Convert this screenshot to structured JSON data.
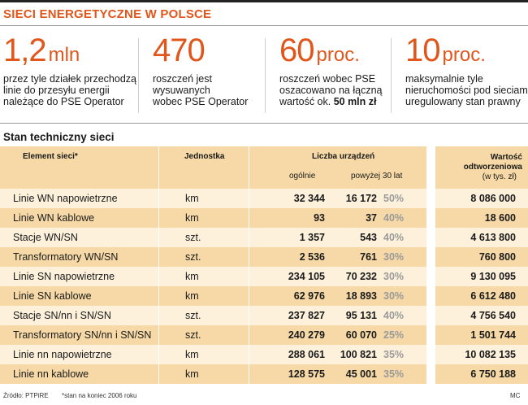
{
  "title": "SIECI ENERGETYCZNE W POLSCE",
  "stats": [
    {
      "value": "1,2",
      "unit": "mln",
      "lines": [
        "przez tyle działek przechodzą",
        "linie do przesyłu energii",
        "należące do PSE Operator"
      ]
    },
    {
      "value": "470",
      "unit": "",
      "lines": [
        "roszczeń jest",
        "wysuwanych",
        "wobec PSE Operator"
      ]
    },
    {
      "value": "60",
      "unit": "proc.",
      "lines": [
        "roszczeń wobec PSE",
        "oszacowano na łączną"
      ],
      "line3_prefix": "wartość ok. ",
      "line3_bold": "50 mln zł"
    },
    {
      "value": "10",
      "unit": "proc.",
      "lines": [
        "maksymalnie tyle",
        "nieruchomości pod sieciami ma",
        "uregulowany stan prawny"
      ]
    }
  ],
  "table": {
    "subtitle": "Stan techniczny sieci",
    "headers": {
      "element": "Element sieci*",
      "unit": "Jednostka",
      "count": "Liczba urządzeń",
      "total": "ogólnie",
      "over30": "powyżej 30 lat",
      "value_l1": "Wartość",
      "value_l2": "odtworzeniowa",
      "value_l3": "(w tys. zł)"
    },
    "rows": [
      {
        "element": "Linie WN napowietrzne",
        "unit": "km",
        "total": "32 344",
        "over30": "16 172",
        "pct": "50%",
        "value": "8 086 000"
      },
      {
        "element": "Linie WN kablowe",
        "unit": "km",
        "total": "93",
        "over30": "37",
        "pct": "40%",
        "value": "18 600"
      },
      {
        "element": "Stacje WN/SN",
        "unit": "szt.",
        "total": "1 357",
        "over30": "543",
        "pct": "40%",
        "value": "4 613 800"
      },
      {
        "element": "Transformatory WN/SN",
        "unit": "szt.",
        "total": "2 536",
        "over30": "761",
        "pct": "30%",
        "value": "760 800"
      },
      {
        "element": "Linie SN napowietrzne",
        "unit": "km",
        "total": "234 105",
        "over30": "70 232",
        "pct": "30%",
        "value": "9 130 095"
      },
      {
        "element": "Linie SN kablowe",
        "unit": "km",
        "total": "62 976",
        "over30": "18 893",
        "pct": "30%",
        "value": "6 612 480"
      },
      {
        "element": "Stacje SN/nn i SN/SN",
        "unit": "szt.",
        "total": "237 827",
        "over30": "95 131",
        "pct": "40%",
        "value": "4 756 540"
      },
      {
        "element": "Transformatory SN/nn i SN/SN",
        "unit": "szt.",
        "total": "240 279",
        "over30": "60 070",
        "pct": "25%",
        "value": "1 501 744"
      },
      {
        "element": "Linie nn napowietrzne",
        "unit": "km",
        "total": "288 061",
        "over30": "100 821",
        "pct": "35%",
        "value": "10 082 135"
      },
      {
        "element": "Linie nn kablowe",
        "unit": "km",
        "total": "128 575",
        "over30": "45 001",
        "pct": "35%",
        "value": "6 750 188"
      }
    ]
  },
  "footer": {
    "source": "Źródło: PTPiRE",
    "note": "*stan na koniec 2006 roku",
    "author": "MC"
  },
  "colors": {
    "accent": "#e0561b",
    "band_dark": "#f6d9a6",
    "band_light": "#fdf1dc",
    "muted": "#9a9a9a"
  }
}
